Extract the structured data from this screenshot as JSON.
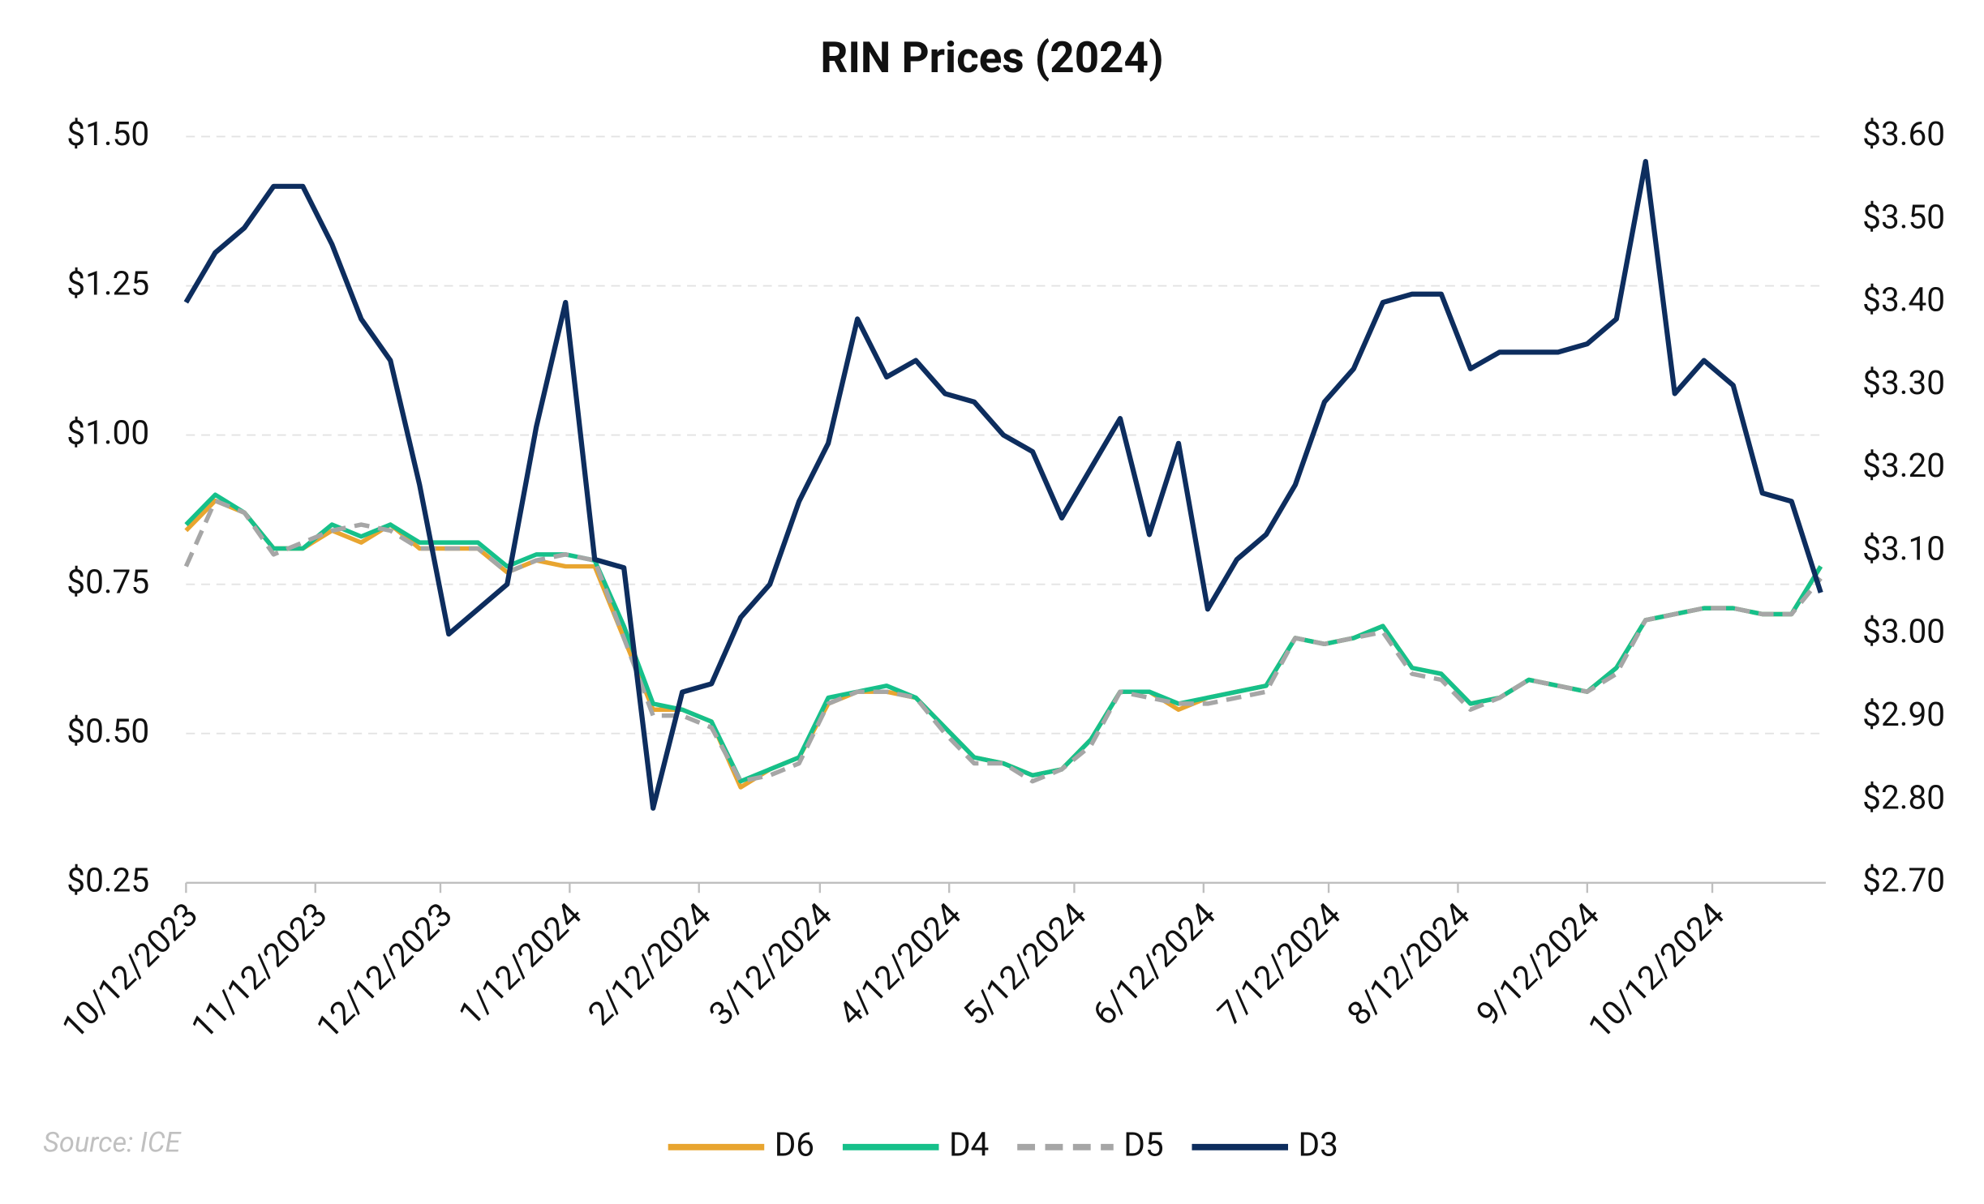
{
  "chart_data": {
    "type": "line",
    "title": "RIN Prices (2024)",
    "source": "Source: ICE",
    "x": [
      "2023-10-12",
      "2023-10-19",
      "2023-10-26",
      "2023-11-02",
      "2023-11-09",
      "2023-11-16",
      "2023-11-23",
      "2023-11-30",
      "2023-12-07",
      "2023-12-14",
      "2023-12-21",
      "2023-12-28",
      "2024-01-04",
      "2024-01-11",
      "2024-01-18",
      "2024-01-25",
      "2024-02-01",
      "2024-02-08",
      "2024-02-15",
      "2024-02-22",
      "2024-02-29",
      "2024-03-07",
      "2024-03-14",
      "2024-03-21",
      "2024-03-28",
      "2024-04-04",
      "2024-04-11",
      "2024-04-18",
      "2024-04-25",
      "2024-05-02",
      "2024-05-09",
      "2024-05-16",
      "2024-05-23",
      "2024-05-30",
      "2024-06-06",
      "2024-06-13",
      "2024-06-20",
      "2024-06-27",
      "2024-07-04",
      "2024-07-11",
      "2024-07-18",
      "2024-07-25",
      "2024-08-01",
      "2024-08-08",
      "2024-08-15",
      "2024-08-22",
      "2024-08-29",
      "2024-09-05",
      "2024-09-12",
      "2024-09-19",
      "2024-09-26",
      "2024-10-03",
      "2024-10-10",
      "2024-10-17",
      "2024-10-24",
      "2024-10-31",
      "2024-11-07"
    ],
    "series": [
      {
        "name": "D6",
        "color": "#e8a530",
        "values": [
          0.84,
          0.89,
          0.87,
          0.81,
          0.81,
          0.84,
          0.82,
          0.85,
          0.81,
          0.81,
          0.81,
          0.77,
          0.79,
          0.78,
          0.78,
          0.66,
          0.54,
          0.54,
          0.52,
          0.41,
          0.44,
          0.46,
          0.55,
          0.57,
          0.57,
          0.56,
          0.51,
          0.46,
          0.45,
          0.43,
          0.44,
          0.49,
          0.57,
          0.57,
          0.54,
          0.56,
          0.57,
          0.58,
          0.66,
          0.65,
          0.66,
          0.68,
          0.61,
          0.6,
          0.55,
          0.56,
          0.59,
          0.58,
          0.57,
          0.61,
          0.69,
          0.7,
          0.71,
          0.71,
          0.7,
          0.7,
          0.78
        ]
      },
      {
        "name": "D4",
        "color": "#16c08a",
        "values": [
          0.85,
          0.9,
          0.87,
          0.81,
          0.81,
          0.85,
          0.83,
          0.85,
          0.82,
          0.82,
          0.82,
          0.78,
          0.8,
          0.8,
          0.79,
          0.68,
          0.55,
          0.54,
          0.52,
          0.42,
          0.44,
          0.46,
          0.56,
          0.57,
          0.58,
          0.56,
          0.51,
          0.46,
          0.45,
          0.43,
          0.44,
          0.49,
          0.57,
          0.57,
          0.55,
          0.56,
          0.57,
          0.58,
          0.66,
          0.65,
          0.66,
          0.68,
          0.61,
          0.6,
          0.55,
          0.56,
          0.59,
          0.58,
          0.57,
          0.61,
          0.69,
          0.7,
          0.71,
          0.71,
          0.7,
          0.7,
          0.78
        ]
      },
      {
        "name": "D5",
        "color": "#a6a6a6",
        "dashed": true,
        "values": [
          0.78,
          0.89,
          0.87,
          0.8,
          0.82,
          0.84,
          0.85,
          0.84,
          0.81,
          0.81,
          0.81,
          0.77,
          0.79,
          0.8,
          0.79,
          0.66,
          0.53,
          0.53,
          0.51,
          0.42,
          0.43,
          0.45,
          0.55,
          0.57,
          0.57,
          0.56,
          0.5,
          0.45,
          0.45,
          0.42,
          0.44,
          0.48,
          0.57,
          0.56,
          0.55,
          0.55,
          0.56,
          0.57,
          0.66,
          0.65,
          0.66,
          0.67,
          0.6,
          0.59,
          0.54,
          0.56,
          0.59,
          0.58,
          0.57,
          0.6,
          0.69,
          0.7,
          0.71,
          0.71,
          0.7,
          0.7,
          0.76
        ]
      },
      {
        "name": "D3",
        "color": "#0d2d5e",
        "axis": "y2",
        "values": [
          3.4,
          3.46,
          3.49,
          3.54,
          3.54,
          3.47,
          3.38,
          3.33,
          3.18,
          3.0,
          3.03,
          3.06,
          3.25,
          3.4,
          3.09,
          3.08,
          2.79,
          2.93,
          2.94,
          3.02,
          3.06,
          3.16,
          3.23,
          3.38,
          3.31,
          3.33,
          3.29,
          3.28,
          3.24,
          3.22,
          3.14,
          3.2,
          3.26,
          3.12,
          3.23,
          3.03,
          3.09,
          3.12,
          3.18,
          3.28,
          3.32,
          3.4,
          3.41,
          3.41,
          3.32,
          3.34,
          3.34,
          3.34,
          3.35,
          3.38,
          3.57,
          3.29,
          3.33,
          3.3,
          3.17,
          3.16,
          3.05
        ]
      }
    ],
    "xlim": [
      "2023-10-12",
      "2024-11-07"
    ],
    "xticks": [
      {
        "value": "2023-10-12",
        "label": "10/12/2023"
      },
      {
        "value": "2023-11-12",
        "label": "11/12/2023"
      },
      {
        "value": "2023-12-12",
        "label": "12/12/2023"
      },
      {
        "value": "2024-01-12",
        "label": "1/12/2024"
      },
      {
        "value": "2024-02-12",
        "label": "2/12/2024"
      },
      {
        "value": "2024-03-12",
        "label": "3/12/2024"
      },
      {
        "value": "2024-04-12",
        "label": "4/12/2024"
      },
      {
        "value": "2024-05-12",
        "label": "5/12/2024"
      },
      {
        "value": "2024-06-12",
        "label": "6/12/2024"
      },
      {
        "value": "2024-07-12",
        "label": "7/12/2024"
      },
      {
        "value": "2024-08-12",
        "label": "8/12/2024"
      },
      {
        "value": "2024-09-12",
        "label": "9/12/2024"
      },
      {
        "value": "2024-10-12",
        "label": "10/12/2024"
      }
    ],
    "ylim": [
      0.25,
      1.5
    ],
    "yticks": [
      {
        "value": 0.25,
        "label": "$0.25"
      },
      {
        "value": 0.5,
        "label": "$0.50"
      },
      {
        "value": 0.75,
        "label": "$0.75"
      },
      {
        "value": 1.0,
        "label": "$1.00"
      },
      {
        "value": 1.25,
        "label": "$1.25"
      },
      {
        "value": 1.5,
        "label": "$1.50"
      }
    ],
    "y2lim": [
      2.7,
      3.6
    ],
    "y2ticks": [
      {
        "value": 2.7,
        "label": "$2.70"
      },
      {
        "value": 2.8,
        "label": "$2.80"
      },
      {
        "value": 2.9,
        "label": "$2.90"
      },
      {
        "value": 3.0,
        "label": "$3.00"
      },
      {
        "value": 3.1,
        "label": "$3.10"
      },
      {
        "value": 3.2,
        "label": "$3.20"
      },
      {
        "value": 3.3,
        "label": "$3.30"
      },
      {
        "value": 3.4,
        "label": "$3.40"
      },
      {
        "value": 3.5,
        "label": "$3.50"
      },
      {
        "value": 3.6,
        "label": "$3.60"
      }
    ],
    "grid": true,
    "legend": "bottom"
  }
}
